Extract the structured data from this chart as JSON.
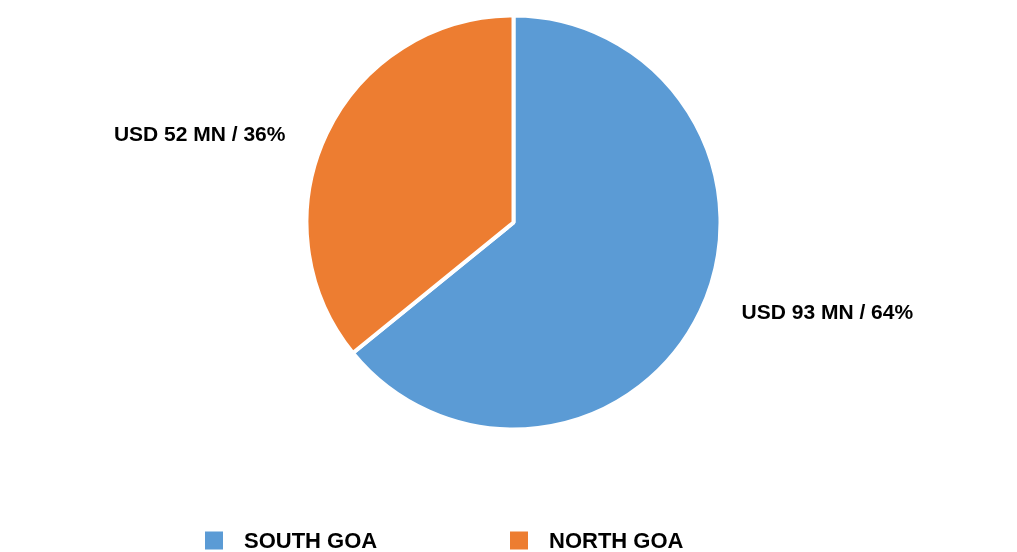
{
  "chart_data": {
    "type": "pie",
    "categories": [
      "SOUTH GOA",
      "NORTH GOA"
    ],
    "values": [
      93,
      52
    ],
    "colors": [
      "#5b9bd5",
      "#ed7d31"
    ],
    "value_labels": [
      "USD 93 MN / 64%",
      "USD 52 MN / 36%"
    ],
    "legend": "bottom"
  }
}
